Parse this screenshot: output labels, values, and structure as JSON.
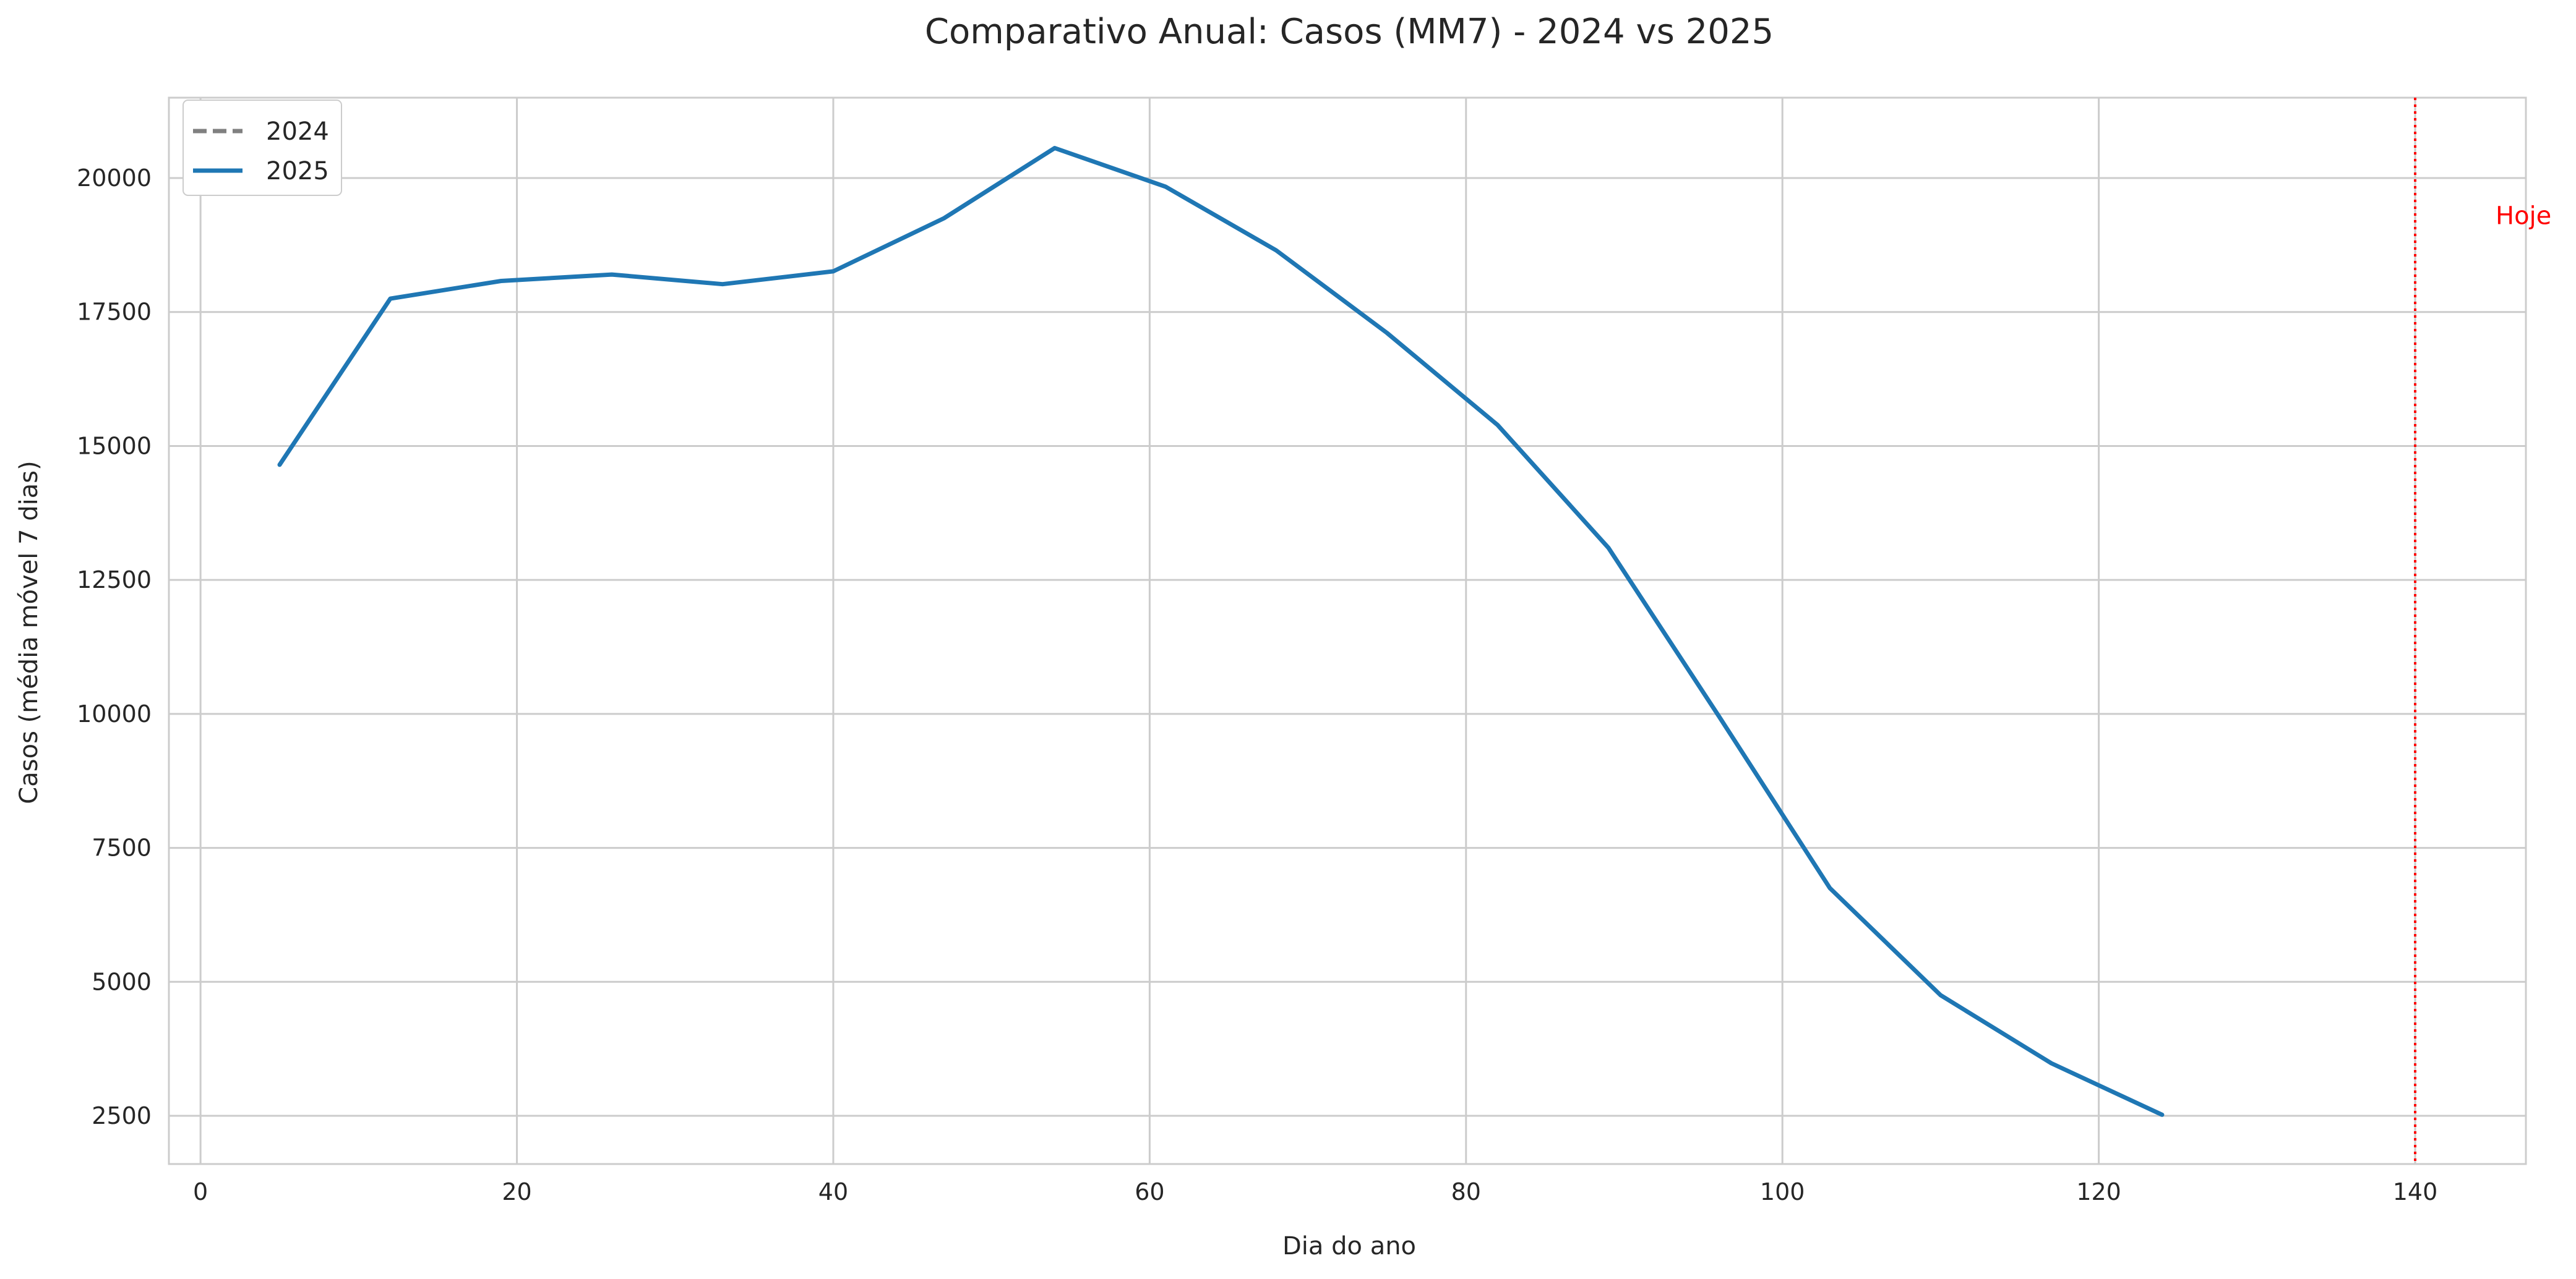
{
  "chart_data": {
    "type": "line",
    "title": "Comparativo Anual: Casos (MM7) - 2024 vs 2025",
    "xlabel": "Dia do ano",
    "ylabel": "Casos (média móvel 7 dias)",
    "xlim": [
      -2,
      147
    ],
    "ylim": [
      1600,
      21500
    ],
    "x_ticks": [
      0,
      20,
      40,
      60,
      80,
      100,
      120,
      140
    ],
    "y_ticks": [
      2500,
      5000,
      7500,
      10000,
      12500,
      15000,
      17500,
      20000
    ],
    "grid": true,
    "legend_position": "top-left",
    "series": [
      {
        "name": "2024",
        "color": "#808080",
        "style": "dashed",
        "x": [],
        "y": []
      },
      {
        "name": "2025",
        "color": "#1f77b4",
        "style": "solid",
        "x": [
          5,
          12,
          19,
          26,
          33,
          40,
          47,
          54,
          61,
          68,
          75,
          82,
          89,
          96,
          103,
          110,
          117,
          124
        ],
        "y": [
          14650,
          17750,
          18080,
          18200,
          18020,
          18260,
          19250,
          20560,
          19840,
          18650,
          17110,
          15390,
          13100,
          9950,
          6750,
          4750,
          3480,
          2520
        ]
      }
    ],
    "annotations": [
      {
        "type": "vline",
        "x": 140,
        "color": "#ff0000",
        "style": "dotted",
        "label": "Hoje"
      }
    ]
  }
}
